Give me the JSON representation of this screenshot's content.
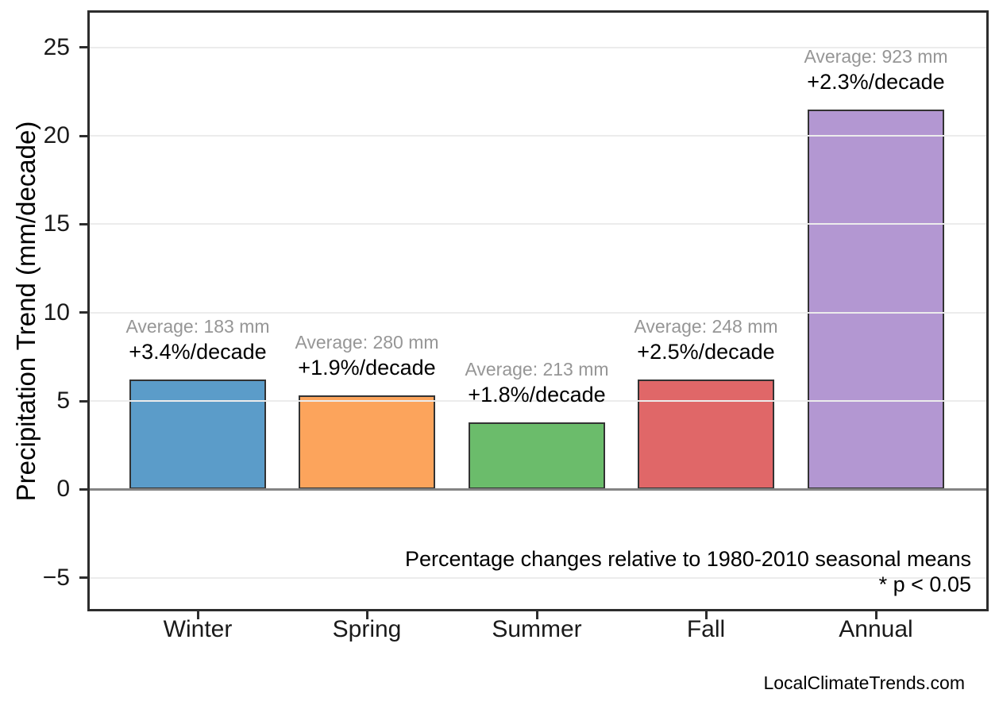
{
  "chart_data": {
    "type": "bar",
    "title": "",
    "xlabel": "",
    "ylabel": "Precipitation Trend (mm/decade)",
    "categories": [
      "Winter",
      "Spring",
      "Summer",
      "Fall",
      "Annual"
    ],
    "values": [
      6.2,
      5.3,
      3.8,
      6.2,
      21.5
    ],
    "bars": [
      {
        "category": "Winter",
        "value": 6.2,
        "average_mm": 183,
        "average_label": "Average: 183 mm",
        "trend_label": "+3.4%/decade",
        "color": "#5B9CC9"
      },
      {
        "category": "Spring",
        "value": 5.3,
        "average_mm": 280,
        "average_label": "Average: 280 mm",
        "trend_label": "+1.9%/decade",
        "color": "#FCA45C"
      },
      {
        "category": "Summer",
        "value": 3.8,
        "average_mm": 213,
        "average_label": "Average: 213 mm",
        "trend_label": "+1.8%/decade",
        "color": "#6BBC6B"
      },
      {
        "category": "Fall",
        "value": 6.2,
        "average_mm": 248,
        "average_label": "Average: 248 mm",
        "trend_label": "+2.5%/decade",
        "color": "#E06768"
      },
      {
        "category": "Annual",
        "value": 21.5,
        "average_mm": 923,
        "average_label": "Average: 923 mm",
        "trend_label": "+2.3%/decade",
        "color": "#B397D2"
      }
    ],
    "yticks": [
      {
        "value": -5,
        "label": "−5"
      },
      {
        "value": 0,
        "label": "0"
      },
      {
        "value": 5,
        "label": "5"
      },
      {
        "value": 10,
        "label": "10"
      },
      {
        "value": 15,
        "label": "15"
      },
      {
        "value": 20,
        "label": "20"
      },
      {
        "value": 25,
        "label": "25"
      }
    ],
    "ylim": [
      -6.9,
      27.1
    ],
    "grid": "horizontal",
    "legend": "none",
    "annotations": {
      "note": "Percentage changes relative to 1980-2010 seasonal means",
      "significance": "* p < 0.05"
    }
  },
  "footer": {
    "watermark": "LocalClimateTrends.com"
  },
  "colors": {
    "bar_edge": "#333333",
    "gridline": "#ececec",
    "zero_line": "#848484",
    "spine": "#2d2d2d",
    "average_text": "#969696",
    "trend_text": "#000000",
    "background": "#ffffff"
  }
}
